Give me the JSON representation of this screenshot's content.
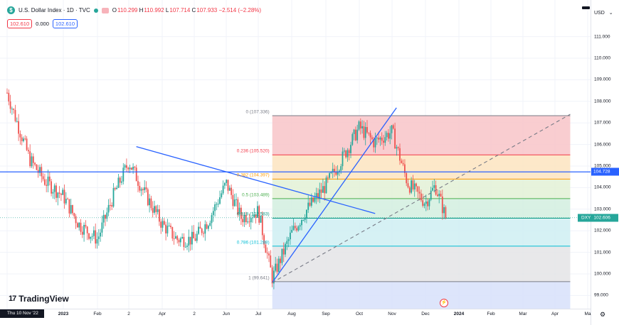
{
  "header": {
    "symbol_icon": "$",
    "title": "U.S. Dollar Index · 1D · TVC",
    "ohlc": {
      "o_label": "O",
      "o": "110.299",
      "h_label": "H",
      "h": "110.992",
      "l_label": "L",
      "l": "107.714",
      "c_label": "C",
      "c": "107.933",
      "change": "−2.514 (−2.28%)"
    }
  },
  "indicator": {
    "value_a": "102.610",
    "value_b": "0.000",
    "value_c": "102.610"
  },
  "price_axis": {
    "currency": "USD",
    "currency_caret": "⌄",
    "ticks": [
      "111.000",
      "110.000",
      "109.000",
      "108.000",
      "107.000",
      "106.000",
      "105.000",
      "104.000",
      "103.000",
      "102.000",
      "101.000",
      "100.000",
      "99.000"
    ],
    "hline_badge": "104.728",
    "last_symbol": "DXY",
    "last_price": "102.606"
  },
  "time_axis": {
    "date_badge": "Thu 10 Nov '22",
    "ticks": [
      {
        "label": "2023",
        "bold": true
      },
      {
        "label": "Feb",
        "bold": false
      },
      {
        "label": "2",
        "bold": false
      },
      {
        "label": "Apr",
        "bold": false
      },
      {
        "label": "2",
        "bold": false
      },
      {
        "label": "Jun",
        "bold": false
      },
      {
        "label": "Jul",
        "bold": false
      },
      {
        "label": "Aug",
        "bold": false
      },
      {
        "label": "Sep",
        "bold": false
      },
      {
        "label": "Oct",
        "bold": false
      },
      {
        "label": "Nov",
        "bold": false
      },
      {
        "label": "Dec",
        "bold": false
      },
      {
        "label": "2024",
        "bold": true
      },
      {
        "label": "Feb",
        "bold": false
      },
      {
        "label": "Mar",
        "bold": false
      },
      {
        "label": "Apr",
        "bold": false
      },
      {
        "label": "Ma",
        "bold": false
      }
    ]
  },
  "fib_labels": [
    {
      "text": "0 (107.336)",
      "color": "#787b86"
    },
    {
      "text": "0.236 (105.520)",
      "color": "#f23645"
    },
    {
      "text": "0.382 (104.397)",
      "color": "#ff9800"
    },
    {
      "text": "0.5 (103.489)",
      "color": "#4caf50"
    },
    {
      "text": "0.618 (102.583)",
      "color": "#089981"
    },
    {
      "text": "0.786 (101.288)",
      "color": "#00bcd4"
    },
    {
      "text": "1 (99.641)",
      "color": "#787b86"
    }
  ],
  "branding": {
    "logo_mark": "17",
    "logo_text": "TradingView"
  },
  "event_icon": "⚡",
  "colors": {
    "up": "#26a69a",
    "down": "#ef5350",
    "trend": "#2962ff",
    "hline": "#2962ff"
  },
  "chart_data": {
    "type": "candlestick",
    "title": "U.S. Dollar Index · 1D · TVC",
    "xlabel": "",
    "ylabel": "",
    "ylim": [
      98.5,
      112.5
    ],
    "series": [
      {
        "name": "DXY",
        "close_path": [
          [
            "2022-11-10",
            108.4
          ],
          [
            "2022-11-20",
            106.9
          ],
          [
            "2022-12-01",
            105.3
          ],
          [
            "2022-12-15",
            104.3
          ],
          [
            "2023-01-01",
            103.6
          ],
          [
            "2023-01-15",
            102.3
          ],
          [
            "2023-02-01",
            101.6
          ],
          [
            "2023-02-15",
            103.6
          ],
          [
            "2023-03-01",
            105.2
          ],
          [
            "2023-03-15",
            103.8
          ],
          [
            "2023-04-01",
            102.3
          ],
          [
            "2023-04-15",
            101.6
          ],
          [
            "2023-05-01",
            101.6
          ],
          [
            "2023-05-15",
            102.5
          ],
          [
            "2023-06-01",
            104.2
          ],
          [
            "2023-06-15",
            102.6
          ],
          [
            "2023-07-01",
            102.9
          ],
          [
            "2023-07-14",
            99.8
          ],
          [
            "2023-08-01",
            101.9
          ],
          [
            "2023-08-15",
            103.0
          ],
          [
            "2023-09-01",
            104.1
          ],
          [
            "2023-09-15",
            105.3
          ],
          [
            "2023-10-01",
            106.8
          ],
          [
            "2023-10-15",
            106.1
          ],
          [
            "2023-11-01",
            106.6
          ],
          [
            "2023-11-15",
            104.2
          ],
          [
            "2023-12-01",
            103.3
          ],
          [
            "2023-12-10",
            104.1
          ],
          [
            "2023-12-20",
            102.6
          ]
        ]
      }
    ],
    "fibonacci": [
      {
        "level": "0",
        "price": 107.336
      },
      {
        "level": "0.236",
        "price": 105.52
      },
      {
        "level": "0.382",
        "price": 104.397
      },
      {
        "level": "0.5",
        "price": 103.489
      },
      {
        "level": "0.618",
        "price": 102.583
      },
      {
        "level": "0.786",
        "price": 101.288
      },
      {
        "level": "1",
        "price": 99.641
      }
    ],
    "horizontal_line": 104.728,
    "last_price": 102.606,
    "trendlines": [
      {
        "from": [
          "2023-03-08",
          105.9
        ],
        "to": [
          "2023-10-16",
          102.8
        ]
      },
      {
        "from": [
          "2023-07-14",
          99.6
        ],
        "to": [
          "2023-11-05",
          107.7
        ]
      }
    ],
    "dashed_line": {
      "from": [
        "2023-07-14",
        99.6
      ],
      "to": [
        "2024-04-15",
        107.4
      ]
    }
  }
}
